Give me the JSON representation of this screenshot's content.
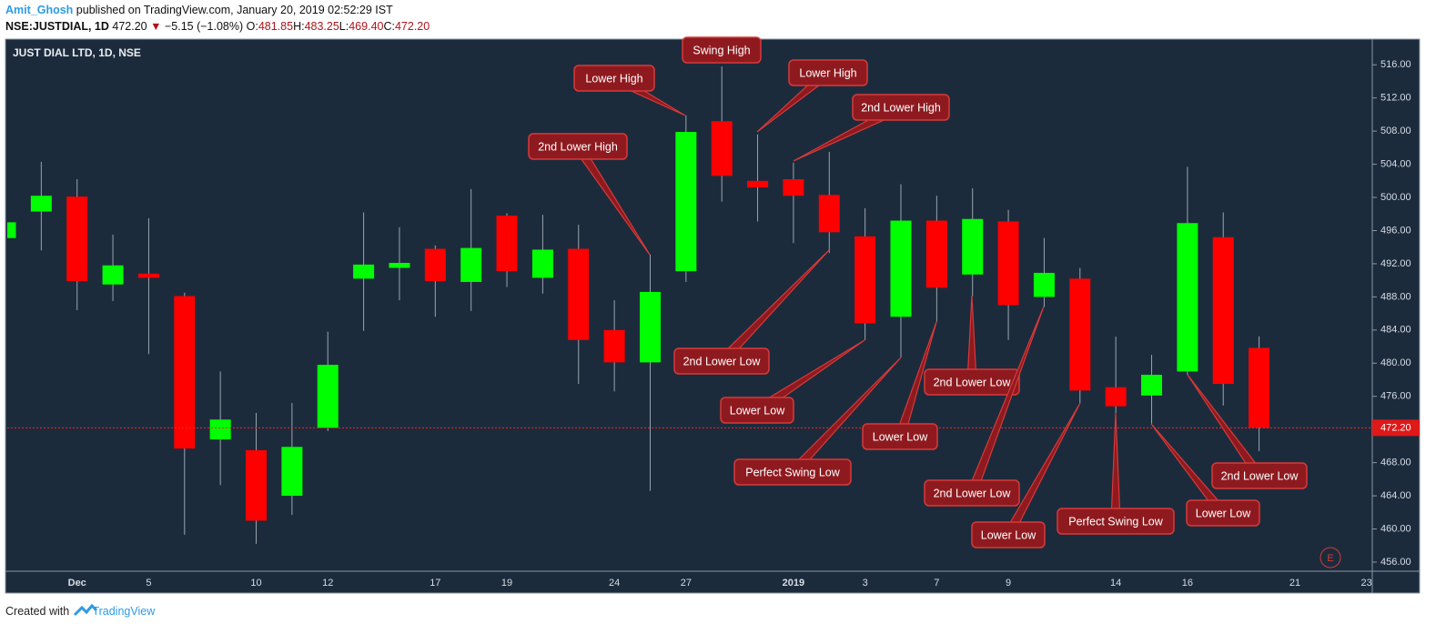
{
  "header": {
    "author": "Amit_Ghosh",
    "published": "published on TradingView.com, January 20, 2019 02:52:29 IST",
    "symbol": "NSE:JUSTDIAL, 1D",
    "last": "472.20",
    "change_arrow": "▼",
    "change": "−5.15 (−1.08%)",
    "ohlc": [
      {
        "key": "O:",
        "value": "481.85"
      },
      {
        "key": "H:",
        "value": "483.25"
      },
      {
        "key": "L:",
        "value": "469.40"
      },
      {
        "key": "C:",
        "value": "472.20"
      }
    ]
  },
  "chart_data": {
    "type": "candlestick",
    "title": "JUST DIAL LTD, 1D, NSE",
    "categories": [
      null,
      null,
      "Dec",
      null,
      "5",
      null,
      null,
      "10",
      null,
      "12",
      null,
      null,
      "17",
      null,
      "19",
      null,
      null,
      "24",
      null,
      "27",
      null,
      null,
      "2019",
      null,
      "3",
      null,
      "7",
      null,
      "9",
      null,
      null,
      "14",
      null,
      "16",
      null,
      null,
      "21",
      null,
      "23"
    ],
    "open": [
      495.1,
      498.3,
      500.1,
      489.5,
      490.8,
      488.1,
      470.8,
      469.5,
      464.0,
      472.2,
      490.2,
      491.5,
      493.8,
      489.8,
      497.8,
      490.3,
      493.8,
      484.0,
      480.1,
      491.1,
      509.2,
      502.0,
      502.2,
      500.3,
      495.3,
      485.6,
      497.2,
      490.7,
      497.1,
      488.0,
      490.2,
      477.1,
      476.1,
      479.0,
      495.2,
      481.85,
      null,
      null,
      null
    ],
    "high": [
      497.2,
      504.3,
      502.2,
      495.5,
      497.5,
      488.5,
      479.0,
      474.0,
      475.2,
      483.8,
      498.2,
      496.4,
      494.2,
      501.0,
      498.1,
      497.9,
      496.7,
      487.6,
      493.1,
      509.9,
      515.8,
      507.6,
      504.2,
      505.5,
      498.7,
      501.6,
      500.2,
      501.1,
      498.5,
      495.1,
      491.5,
      483.2,
      481.0,
      503.7,
      498.2,
      483.25,
      null,
      null,
      null
    ],
    "low": [
      494.8,
      493.6,
      486.4,
      487.5,
      481.1,
      459.3,
      465.3,
      458.2,
      461.7,
      471.8,
      483.9,
      487.6,
      485.6,
      486.3,
      489.2,
      488.4,
      477.5,
      476.6,
      464.6,
      489.8,
      499.5,
      497.1,
      494.5,
      493.3,
      482.8,
      480.7,
      485.0,
      488.1,
      482.8,
      486.8,
      475.2,
      474.0,
      472.7,
      478.6,
      474.9,
      469.4,
      null,
      null,
      null
    ],
    "close": [
      497.0,
      500.2,
      489.9,
      491.8,
      490.3,
      469.7,
      473.2,
      461.0,
      469.9,
      479.8,
      491.9,
      492.1,
      489.9,
      493.9,
      491.1,
      493.7,
      482.8,
      480.1,
      488.6,
      507.9,
      502.6,
      501.2,
      500.2,
      495.8,
      484.8,
      497.2,
      489.1,
      497.4,
      487.0,
      490.9,
      476.7,
      474.8,
      478.6,
      496.9,
      477.5,
      472.2,
      null,
      null,
      null
    ],
    "up_color": "#00ff00",
    "down_color": "#ff0000",
    "ylim": [
      454.9,
      519.1
    ],
    "yticks": [
      {
        "value": 456,
        "label": "456.00"
      },
      {
        "value": 460,
        "label": "460.00"
      },
      {
        "value": 464,
        "label": "464.00"
      },
      {
        "value": 468,
        "label": "468.00"
      },
      {
        "value": 472,
        "label": "472.00"
      },
      {
        "value": 476,
        "label": "476.00"
      },
      {
        "value": 480,
        "label": "480.00"
      },
      {
        "value": 484,
        "label": "484.00"
      },
      {
        "value": 488,
        "label": "488.00"
      },
      {
        "value": 492,
        "label": "492.00"
      },
      {
        "value": 496,
        "label": "496.00"
      },
      {
        "value": 500,
        "label": "500.00"
      },
      {
        "value": 504,
        "label": "504.00"
      },
      {
        "value": 508,
        "label": "508.00"
      },
      {
        "value": 512,
        "label": "512.00"
      },
      {
        "value": 516,
        "label": "516.00"
      }
    ],
    "last_price": {
      "value": 472.2,
      "label": "472.20"
    },
    "annotations": [
      "Lower High",
      "Swing High",
      "Lower High",
      "2nd Lower High",
      "2nd Lower High",
      "2nd Lower Low",
      "Lower Low",
      "Perfect Swing Low",
      "Lower Low",
      "2nd Lower Low",
      "2nd Lower Low",
      "Lower Low",
      "Perfect Swing Low",
      "Lower Low",
      "2nd Lower Low"
    ],
    "badge": "E"
  },
  "footer": {
    "prefix": "Created with",
    "brand": "TradingView"
  }
}
